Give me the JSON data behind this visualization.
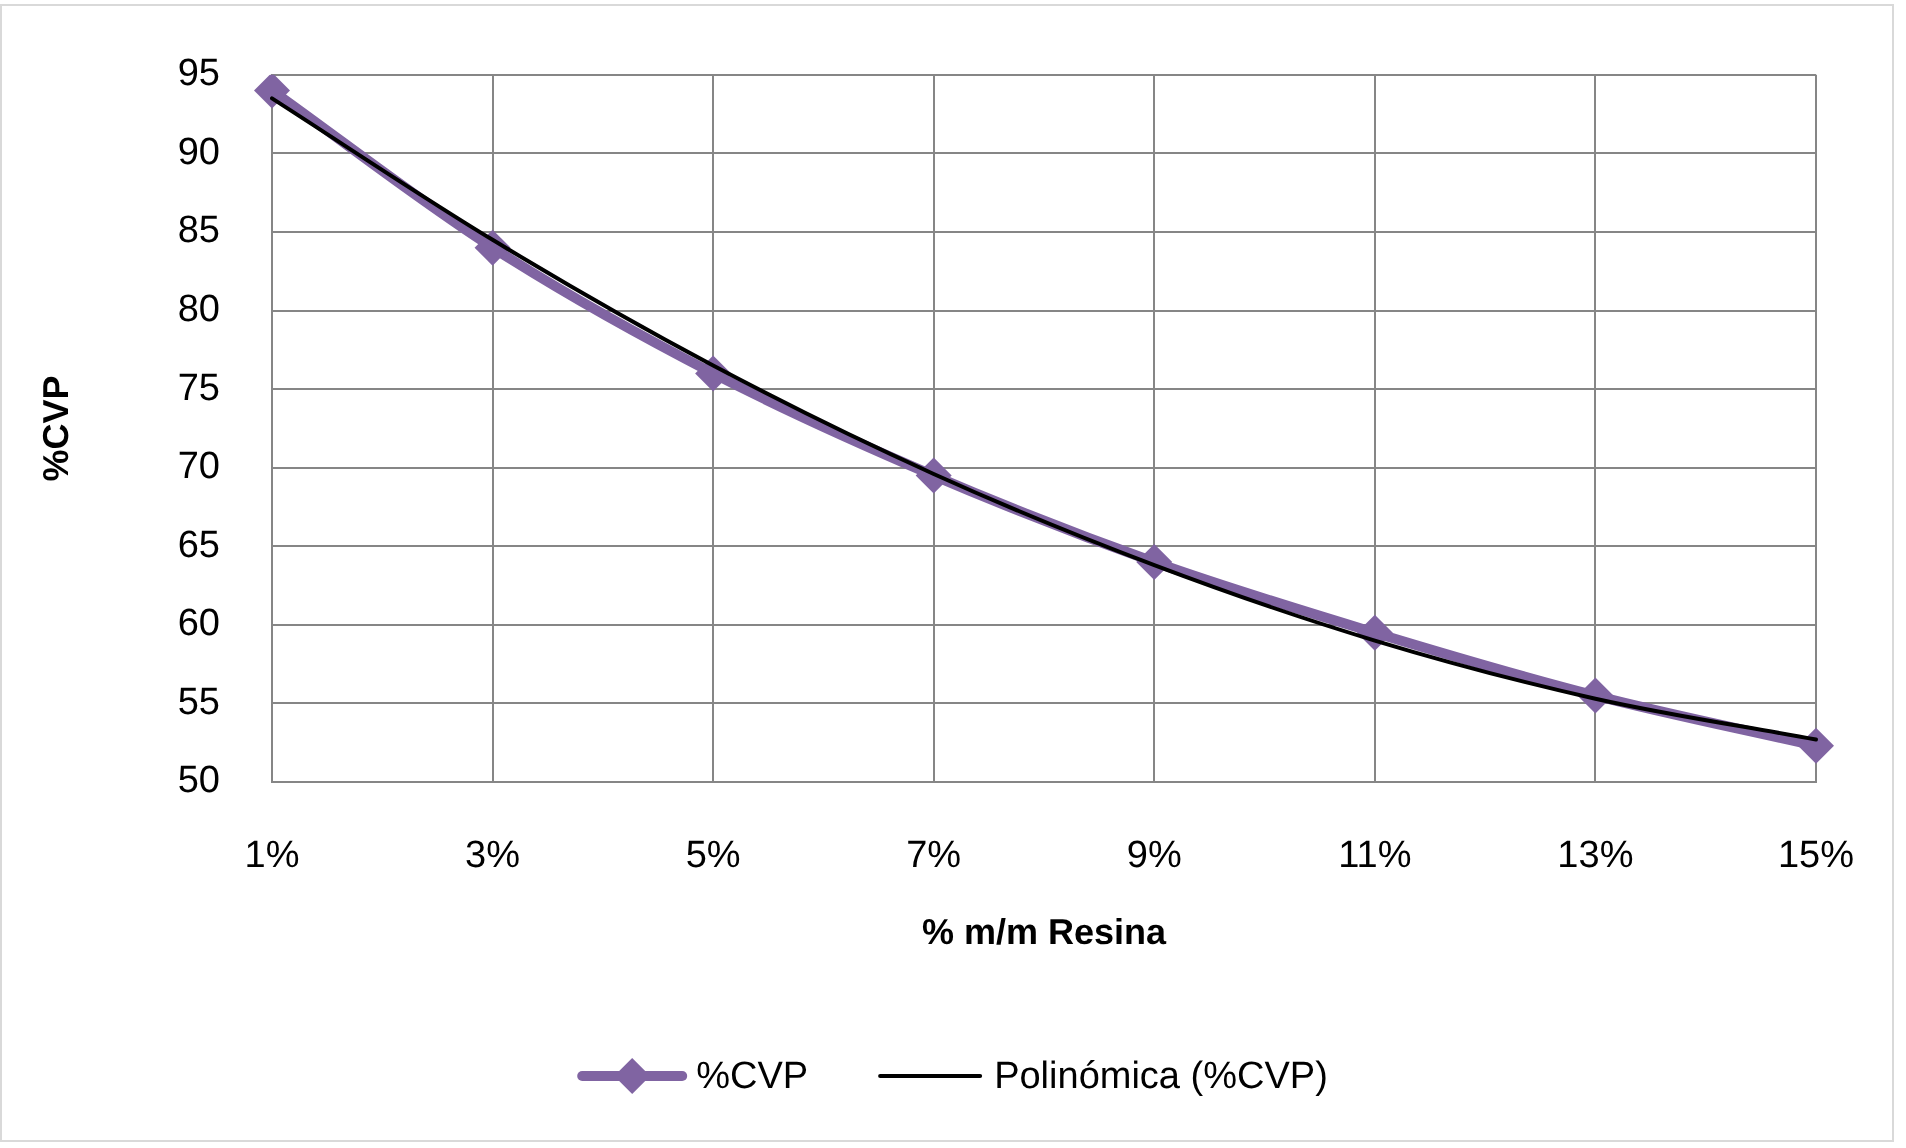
{
  "chart_data": {
    "type": "line",
    "xlabel": "% m/m Resina",
    "ylabel": "%CVP",
    "categories": [
      "1%",
      "3%",
      "5%",
      "7%",
      "9%",
      "11%",
      "13%",
      "15%"
    ],
    "series": [
      {
        "name": "%CVP",
        "color": "#8064a2",
        "marker": "diamond",
        "values": [
          94,
          84,
          76,
          69.5,
          64,
          59.5,
          55.5,
          52.3
        ]
      },
      {
        "name": "Polinómica (%CVP)",
        "color": "#000000",
        "marker": "none",
        "values": [
          93.5,
          84.5,
          76.5,
          69.6,
          63.8,
          59.0,
          55.3,
          52.7
        ]
      }
    ],
    "ylim": [
      50,
      95
    ],
    "yticks": [
      50,
      55,
      60,
      65,
      70,
      75,
      80,
      85,
      90,
      95
    ],
    "grid": true,
    "legend": "bottom"
  }
}
